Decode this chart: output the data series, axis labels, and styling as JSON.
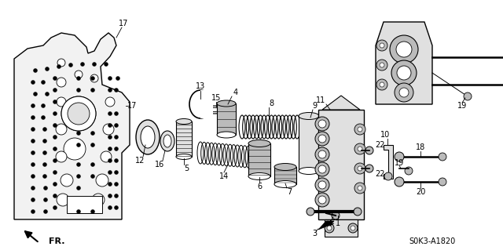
{
  "background_color": "#ffffff",
  "diagram_code": "S0K3-A1820",
  "fr_label": "FR.",
  "fig_width": 6.4,
  "fig_height": 3.19,
  "dpi": 100
}
